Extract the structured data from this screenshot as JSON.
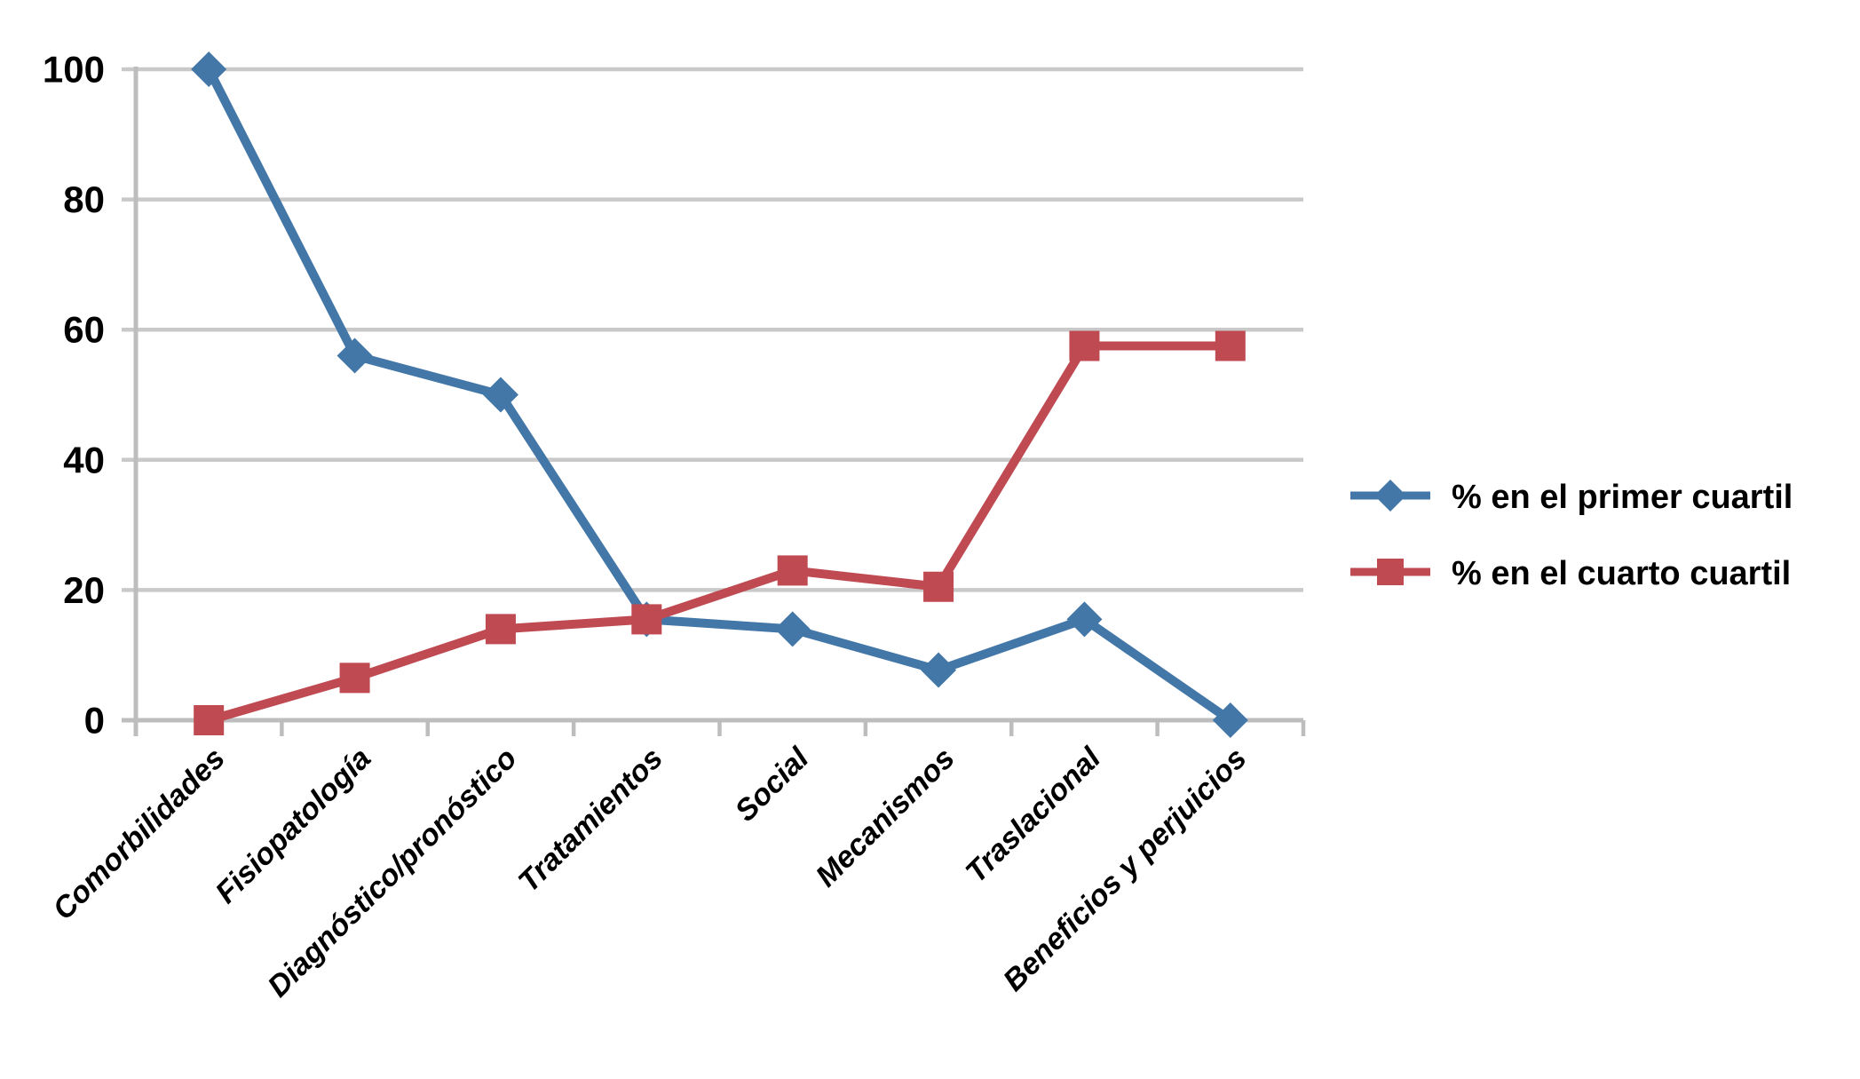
{
  "chart_data": {
    "type": "line",
    "categories": [
      "Comorbilidades",
      "Fisiopatología",
      "Diagnóstico/pronóstico",
      "Tratamientos",
      "Social",
      "Mecanismos",
      "Traslacional",
      "Beneficios y perjuicios"
    ],
    "series": [
      {
        "name": "% en el primer cuartil",
        "marker": "diamond",
        "color": "#4377A8",
        "values": [
          100,
          56,
          50,
          15.5,
          14,
          7.7,
          15.5,
          0
        ]
      },
      {
        "name": "% en el cuarto cuartil",
        "marker": "square",
        "color": "#BF4A52",
        "values": [
          0,
          6.5,
          14,
          15.5,
          23,
          20.5,
          57.5,
          57.5
        ]
      }
    ],
    "title": "",
    "xlabel": "",
    "ylabel": "",
    "ylim": [
      0,
      100
    ],
    "yticks": [
      0,
      20,
      40,
      60,
      80,
      100
    ],
    "grid": "horizontal",
    "legend_position": "right-middle"
  },
  "colors": {
    "background": "#FFFFFF",
    "gridline": "#C9C9C9",
    "axis": "#BDBDBD",
    "text": "#000000"
  }
}
